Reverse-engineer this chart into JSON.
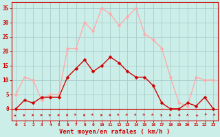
{
  "x": [
    0,
    1,
    2,
    3,
    4,
    5,
    6,
    7,
    8,
    9,
    10,
    11,
    12,
    13,
    14,
    15,
    16,
    17,
    18,
    19,
    20,
    21,
    22,
    23
  ],
  "vent_moyen": [
    0,
    3,
    2,
    4,
    4,
    4,
    11,
    14,
    17,
    13,
    15,
    18,
    16,
    13,
    11,
    11,
    8,
    2,
    0,
    0,
    2,
    1,
    4,
    0
  ],
  "rafales": [
    5,
    11,
    10,
    3,
    5,
    5,
    21,
    21,
    30,
    27,
    35,
    33,
    29,
    32,
    35,
    26,
    24,
    21,
    11,
    2,
    1,
    11,
    10,
    10
  ],
  "color_moyen": "#cc0000",
  "color_rafales": "#ffaaaa",
  "bg_color": "#cceee8",
  "grid_color": "#aacccc",
  "xlabel": "Vent moyen/en rafales ( km/h )",
  "ylabel_ticks": [
    0,
    5,
    10,
    15,
    20,
    25,
    30,
    35
  ],
  "xlim": [
    -0.5,
    23.5
  ],
  "ylim": [
    -4,
    37
  ],
  "plot_ylim": [
    0,
    37
  ]
}
